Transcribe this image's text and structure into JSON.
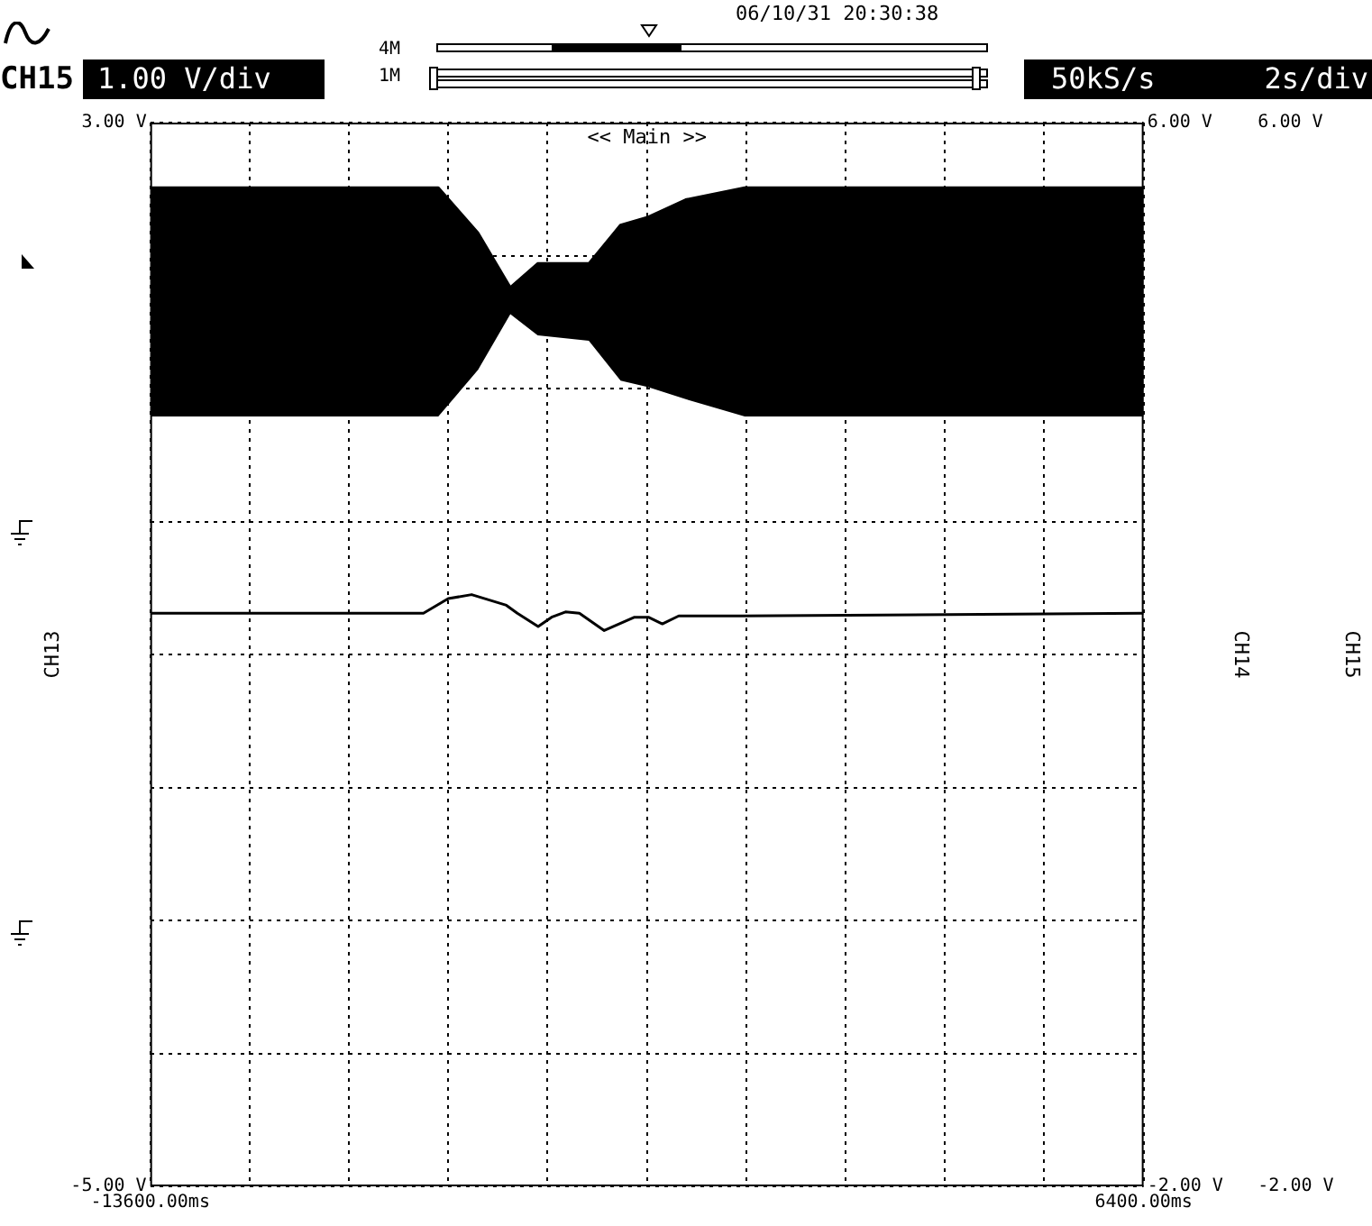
{
  "chart_data": {
    "type": "line",
    "annotations": [
      "CH15",
      "1.00 V/div",
      "4M",
      "1M",
      "06/10/31 20:30:38",
      "50kS/s",
      "2s/div",
      "<< Main >>"
    ],
    "ylabel": "CH13",
    "y2label": "CH14",
    "y3label": "CH15",
    "xlim": [
      -13600,
      6400
    ],
    "xticks": [
      {
        "value": -13600,
        "label": "-13600.00ms"
      },
      {
        "value": -11600,
        "label": null
      },
      {
        "value": -9600,
        "label": null
      },
      {
        "value": -7600,
        "label": null
      },
      {
        "value": -5600,
        "label": null
      },
      {
        "value": -3600,
        "label": null
      },
      {
        "value": -1600,
        "label": null
      },
      {
        "value": 400,
        "label": null
      },
      {
        "value": 2400,
        "label": null
      },
      {
        "value": 4400,
        "label": null
      },
      {
        "value": 6400,
        "label": "6400.00ms"
      }
    ],
    "ylim": [
      -5,
      3
    ],
    "yticks": [
      {
        "value": -5,
        "label": "-5.00 V"
      },
      {
        "value": -4,
        "label": null
      },
      {
        "value": -3,
        "label": null
      },
      {
        "value": -2,
        "label": null
      },
      {
        "value": -1,
        "label": null
      },
      {
        "value": 0,
        "label": null
      },
      {
        "value": 1,
        "label": null
      },
      {
        "value": 2,
        "label": null
      },
      {
        "value": 3,
        "label": "3.00 V"
      }
    ],
    "y2lim": [
      -2,
      6
    ],
    "y2ticks": [
      {
        "value": -2,
        "label": "-2.00 V"
      },
      {
        "value": 6,
        "label": "6.00 V"
      }
    ],
    "y3lim": [
      -2,
      6
    ],
    "y3ticks": [
      {
        "value": -2,
        "label": "-2.00 V"
      },
      {
        "value": 6,
        "label": "6.00 V"
      }
    ],
    "grid": true,
    "series": [
      {
        "color": "#000000",
        "axis": "y",
        "x": [
          -13600,
          -7800,
          -7000,
          -6350,
          -5800,
          -4770,
          -4130,
          -3570,
          -2820,
          -1630,
          6400
        ],
        "values": [
          2.51,
          2.51,
          2.17,
          1.76,
          1.94,
          1.94,
          2.23,
          2.29,
          2.42,
          2.51,
          2.51
        ],
        "upper": [
          2.51,
          2.51,
          2.17,
          1.76,
          1.94,
          1.94,
          2.23,
          2.29,
          2.42,
          2.51,
          2.51
        ],
        "lower": [
          0.79,
          0.79,
          1.14,
          1.56,
          1.4,
          1.36,
          1.06,
          1.01,
          0.92,
          0.79,
          0.79
        ]
      },
      {
        "color": "#000000",
        "axis": "y2",
        "x": [
          -13600,
          -8100,
          -7600,
          -7130,
          -6430,
          -6210,
          -5790,
          -5520,
          -5240,
          -4960,
          -4460,
          -3850,
          -3570,
          -3290,
          -2960,
          -1710,
          6400
        ],
        "values": [
          2.31,
          2.31,
          2.42,
          2.45,
          2.37,
          2.31,
          2.21,
          2.28,
          2.32,
          2.31,
          2.18,
          2.28,
          2.28,
          2.23,
          2.29,
          2.29,
          2.31
        ]
      }
    ]
  }
}
